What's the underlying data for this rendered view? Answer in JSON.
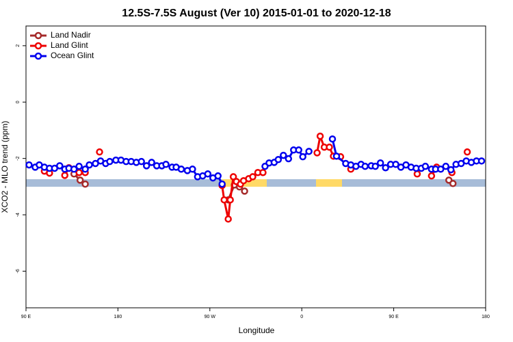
{
  "chart_data": {
    "type": "line",
    "title": "12.5S-7.5S August (Ver 10)   2015-01-01 to 2020-12-18",
    "xlabel": "Longitude",
    "ylabel": "XCO2 - MLO trend (ppm)",
    "xlim": [
      90,
      540
    ],
    "ylim": [
      -7.3,
      2.7
    ],
    "xticks": [
      {
        "value": 90,
        "label": "90 E"
      },
      180,
      {
        "value": 270,
        "label": "90 W"
      },
      {
        "value": 360,
        "label": "0"
      },
      {
        "value": 450,
        "label": "90 E"
      },
      {
        "value": 540,
        "label": "180"
      }
    ],
    "yticks": [
      -6,
      -4,
      -2,
      0,
      2
    ],
    "legend": "top-left",
    "series": [
      {
        "name": "Land Nadir",
        "color": "#a52a2a",
        "x": [
          137,
          143,
          148,
          null,
          288,
          294,
          299,
          304,
          null,
          504,
          508
        ],
        "values": [
          -2.55,
          -2.77,
          -2.91,
          null,
          -3.47,
          -2.94,
          -3.01,
          -3.16,
          null,
          -2.77,
          -2.89
        ]
      },
      {
        "name": "Land Glint",
        "color": "#ee0000",
        "x": [
          108,
          113,
          null,
          128,
          132,
          null,
          142,
          148,
          null,
          162,
          null,
          282,
          284,
          288,
          290,
          293,
          296,
          300,
          303,
          308,
          312,
          317,
          322,
          null,
          375,
          378,
          382,
          387,
          391,
          398,
          null,
          408,
          null,
          473,
          null,
          487,
          492,
          null,
          507,
          null,
          522
        ],
        "values": [
          -2.45,
          -2.52,
          null,
          -2.6,
          -2.33,
          null,
          -2.5,
          -2.5,
          null,
          -1.77,
          null,
          -2.96,
          -3.47,
          -4.15,
          -3.47,
          -2.65,
          -2.82,
          -2.91,
          -2.79,
          -2.72,
          -2.65,
          -2.5,
          -2.5,
          null,
          -1.8,
          -1.21,
          -1.6,
          -1.6,
          -1.92,
          -1.94,
          null,
          -2.38,
          null,
          -2.55,
          null,
          -2.62,
          -2.31,
          null,
          -2.5,
          null,
          -1.77
        ]
      },
      {
        "name": "Ocean Glint",
        "color": "#0000ee",
        "x": [
          93,
          99,
          103,
          108,
          113,
          118,
          123,
          128,
          132,
          137,
          142,
          148,
          152,
          158,
          163,
          168,
          172,
          178,
          183,
          188,
          193,
          198,
          203,
          208,
          213,
          218,
          223,
          227,
          233,
          237,
          242,
          248,
          253,
          258,
          263,
          268,
          273,
          278,
          282,
          null,
          324,
          328,
          333,
          337,
          342,
          347,
          352,
          357,
          361,
          367,
          null,
          390,
          394,
          403,
          408,
          413,
          418,
          422,
          428,
          432,
          437,
          442,
          447,
          452,
          457,
          462,
          467,
          472,
          477,
          481,
          487,
          491,
          496,
          501,
          506,
          511,
          516,
          521,
          526,
          531,
          536
        ],
        "values": [
          -2.23,
          -2.31,
          -2.23,
          -2.31,
          -2.35,
          -2.35,
          -2.26,
          -2.38,
          -2.35,
          -2.38,
          -2.28,
          -2.38,
          -2.23,
          -2.18,
          -2.09,
          -2.18,
          -2.11,
          -2.06,
          -2.06,
          -2.11,
          -2.11,
          -2.14,
          -2.11,
          -2.26,
          -2.14,
          -2.26,
          -2.26,
          -2.21,
          -2.31,
          -2.31,
          -2.38,
          -2.43,
          -2.38,
          -2.65,
          -2.62,
          -2.55,
          -2.69,
          -2.62,
          -2.91,
          null,
          -2.28,
          -2.16,
          -2.14,
          -2.04,
          -1.89,
          -2.01,
          -1.7,
          -1.7,
          -1.94,
          -1.75,
          null,
          -1.31,
          -1.92,
          -2.18,
          -2.23,
          -2.28,
          -2.21,
          -2.28,
          -2.26,
          -2.28,
          -2.16,
          -2.33,
          -2.21,
          -2.21,
          -2.31,
          -2.23,
          -2.31,
          -2.35,
          -2.35,
          -2.28,
          -2.38,
          -2.38,
          -2.38,
          -2.28,
          -2.4,
          -2.21,
          -2.18,
          -2.09,
          -2.14,
          -2.09,
          -2.09
        ]
      }
    ]
  }
}
